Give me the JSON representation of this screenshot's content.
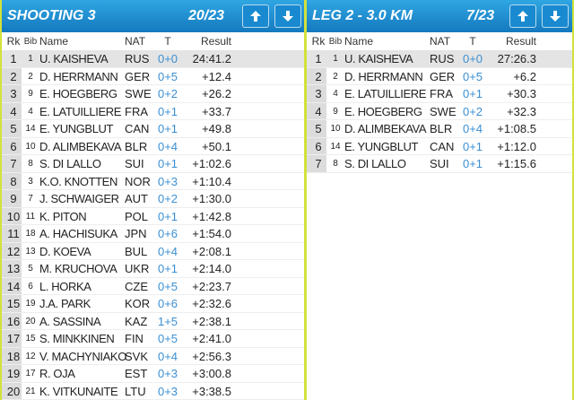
{
  "panels": [
    {
      "title": "SHOOTING 3",
      "counter": "20/23",
      "columns": [
        "Rk",
        "Bib",
        "Name",
        "NAT",
        "T",
        "Result"
      ],
      "rows": [
        [
          1,
          1,
          "U. KAISHEVA",
          "RUS",
          "0+0",
          "24:41.2"
        ],
        [
          2,
          2,
          "D. HERRMANN",
          "GER",
          "0+5",
          "+12.4"
        ],
        [
          3,
          9,
          "E. HOEGBERG",
          "SWE",
          "0+2",
          "+26.2"
        ],
        [
          4,
          4,
          "E. LATUILLIERE",
          "FRA",
          "0+1",
          "+33.7"
        ],
        [
          5,
          14,
          "E. YUNGBLUT",
          "CAN",
          "0+1",
          "+49.8"
        ],
        [
          6,
          10,
          "D. ALIMBEKAVA",
          "BLR",
          "0+4",
          "+50.1"
        ],
        [
          7,
          8,
          "S. DI LALLO",
          "SUI",
          "0+1",
          "+1:02.6"
        ],
        [
          8,
          3,
          "K.O. KNOTTEN",
          "NOR",
          "0+3",
          "+1:10.4"
        ],
        [
          9,
          7,
          "J. SCHWAIGER",
          "AUT",
          "0+2",
          "+1:30.0"
        ],
        [
          10,
          11,
          "K. PITON",
          "POL",
          "0+1",
          "+1:42.8"
        ],
        [
          11,
          18,
          "A. HACHISUKA",
          "JPN",
          "0+6",
          "+1:54.0"
        ],
        [
          12,
          13,
          "D. KOEVA",
          "BUL",
          "0+4",
          "+2:08.1"
        ],
        [
          13,
          5,
          "M. KRUCHOVA",
          "UKR",
          "0+1",
          "+2:14.0"
        ],
        [
          14,
          6,
          "L. HORKA",
          "CZE",
          "0+5",
          "+2:23.7"
        ],
        [
          15,
          19,
          "J.A. PARK",
          "KOR",
          "0+6",
          "+2:32.6"
        ],
        [
          16,
          20,
          "A. SASSINA",
          "KAZ",
          "1+5",
          "+2:38.1"
        ],
        [
          17,
          15,
          "S. MINKKINEN",
          "FIN",
          "0+5",
          "+2:41.0"
        ],
        [
          18,
          12,
          "V. MACHYNIAKO",
          "SVK",
          "0+4",
          "+2:56.3"
        ],
        [
          19,
          17,
          "R. OJA",
          "EST",
          "0+3",
          "+3:00.8"
        ],
        [
          20,
          21,
          "K. VITKUNAITE",
          "LTU",
          "0+3",
          "+3:38.5"
        ]
      ]
    },
    {
      "title": "LEG 2 - 3.0 KM",
      "counter": "7/23",
      "columns": [
        "Rk",
        "Bib",
        "Name",
        "NAT",
        "T",
        "Result"
      ],
      "rows": [
        [
          1,
          1,
          "U. KAISHEVA",
          "RUS",
          "0+0",
          "27:26.3"
        ],
        [
          2,
          2,
          "D. HERRMANN",
          "GER",
          "0+5",
          "+6.2"
        ],
        [
          3,
          4,
          "E. LATUILLIERE",
          "FRA",
          "0+1",
          "+30.3"
        ],
        [
          4,
          9,
          "E. HOEGBERG",
          "SWE",
          "0+2",
          "+32.3"
        ],
        [
          5,
          10,
          "D. ALIMBEKAVA",
          "BLR",
          "0+4",
          "+1:08.5"
        ],
        [
          6,
          14,
          "E. YUNGBLUT",
          "CAN",
          "0+1",
          "+1:12.0"
        ],
        [
          7,
          8,
          "S. DI LALLO",
          "SUI",
          "0+1",
          "+1:15.6"
        ]
      ]
    }
  ]
}
